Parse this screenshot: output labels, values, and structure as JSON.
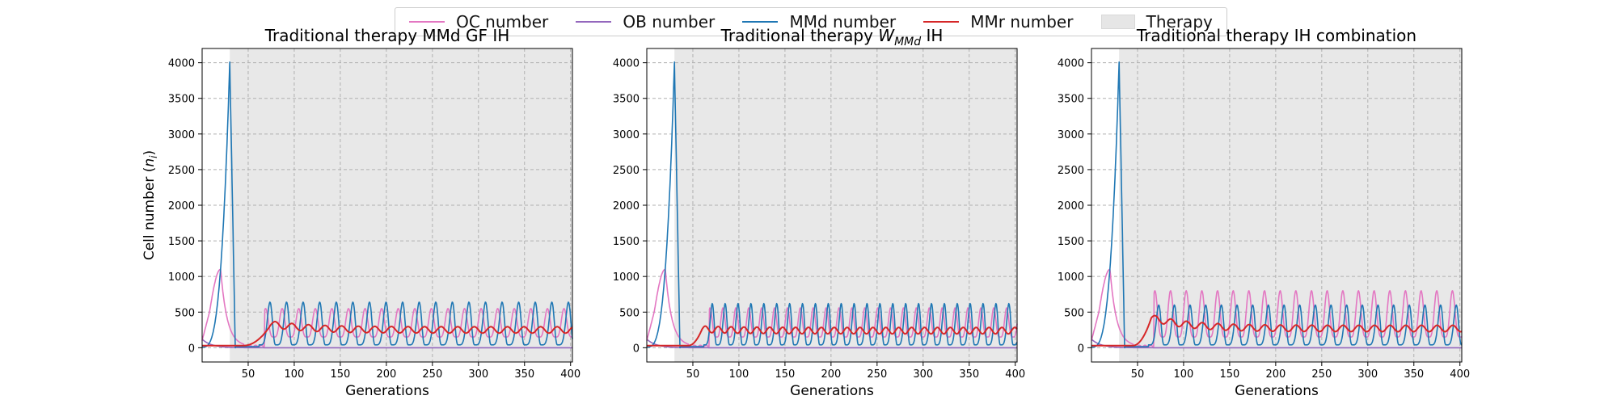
{
  "colors": {
    "oc": "#e377c2",
    "ob": "#9467bd",
    "mmd": "#1f77b4",
    "mmr": "#d62728",
    "therapy": "#e8e8e8",
    "grid": "#b0b0b0"
  },
  "legend": {
    "oc": "OC number",
    "ob": "OB number",
    "mmd": "MMd number",
    "mmr": "MMr number",
    "therapy": "Therapy"
  },
  "chart_data": [
    {
      "type": "line",
      "title": "Traditional therapy MMd GF IH",
      "xlabel": "Generations",
      "ylabel": "Cell number (n_i)",
      "xlim": [
        0,
        402
      ],
      "ylim": [
        -200,
        4200
      ],
      "xticks": [
        50,
        100,
        150,
        200,
        250,
        300,
        350,
        400
      ],
      "yticks": [
        0,
        500,
        1000,
        1500,
        2000,
        2500,
        3000,
        3500,
        4000
      ],
      "grid": true,
      "therapy_start": 30,
      "pattern": {
        "mmd_peak": 4000,
        "oc_peak": 1100,
        "peak_at": 20,
        "oscillation_period": 18,
        "mmd_osc_peak": 600,
        "oc_osc_peak": 550,
        "mmr_mean": 250,
        "mmr_onset": 75,
        "mmr_first_hump": 330
      }
    },
    {
      "type": "line",
      "title": "Traditional therapy W_MMd IH",
      "xlabel": "Generations",
      "ylabel": "",
      "xlim": [
        0,
        402
      ],
      "ylim": [
        -200,
        4200
      ],
      "xticks": [
        50,
        100,
        150,
        200,
        250,
        300,
        350,
        400
      ],
      "yticks": [
        0,
        500,
        1000,
        1500,
        2000,
        2500,
        3000,
        3500,
        4000
      ],
      "grid": true,
      "therapy_start": 30,
      "pattern": {
        "mmd_peak": 4000,
        "oc_peak": 1100,
        "peak_at": 20,
        "oscillation_period": 14,
        "mmd_osc_peak": 580,
        "oc_osc_peak": 560,
        "mmr_mean": 240,
        "mmr_onset": 60,
        "mmr_first_hump": 260
      }
    },
    {
      "type": "line",
      "title": "Traditional therapy IH combination",
      "xlabel": "Generations",
      "ylabel": "",
      "xlim": [
        0,
        402
      ],
      "ylim": [
        -200,
        4200
      ],
      "xticks": [
        50,
        100,
        150,
        200,
        250,
        300,
        350,
        400
      ],
      "yticks": [
        0,
        500,
        1000,
        1500,
        2000,
        2500,
        3000,
        3500,
        4000
      ],
      "grid": true,
      "therapy_start": 30,
      "pattern": {
        "mmd_peak": 4000,
        "oc_peak": 1100,
        "peak_at": 20,
        "oscillation_period": 17,
        "mmd_osc_peak": 560,
        "oc_osc_peak": 800,
        "mmr_mean": 270,
        "mmr_onset": 65,
        "mmr_first_hump": 420
      }
    }
  ]
}
